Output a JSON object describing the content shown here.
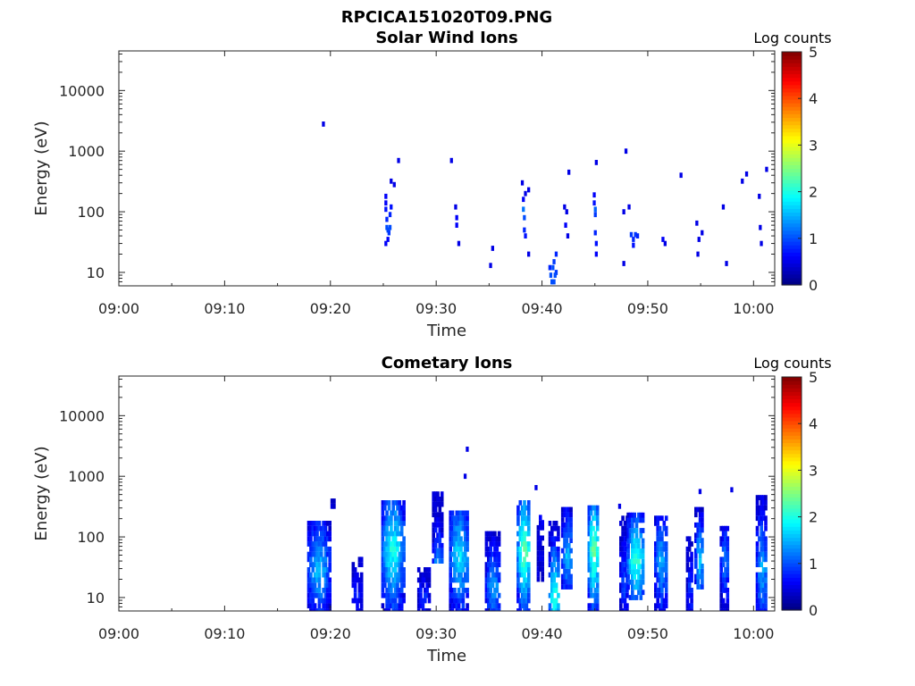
{
  "figure_title": "RPCICA151020T09.PNG",
  "chart_data": [
    {
      "type": "heatmap",
      "title": "Solar Wind Ions",
      "xlabel": "Time",
      "ylabel": "Energy (eV)",
      "x_ticks": [
        "09:00",
        "09:10",
        "09:20",
        "09:30",
        "09:40",
        "09:50",
        "10:00"
      ],
      "x_range_minutes": [
        0,
        62
      ],
      "y_scale": "log",
      "y_ticks": [
        10,
        100,
        1000,
        10000
      ],
      "y_range": [
        6,
        45000
      ],
      "colorbar": {
        "label": "Log counts",
        "ticks": [
          0,
          1,
          2,
          3,
          4,
          5
        ],
        "range": [
          0,
          5
        ],
        "colormap": "jet"
      },
      "cells": [
        [
          19.2,
          2800,
          0.5
        ],
        [
          25.1,
          180,
          0.6
        ],
        [
          25.1,
          140,
          0.6
        ],
        [
          25.1,
          110,
          0.7
        ],
        [
          25.2,
          75,
          0.8
        ],
        [
          25.2,
          55,
          1.0
        ],
        [
          25.3,
          50,
          1.0
        ],
        [
          25.4,
          45,
          0.9
        ],
        [
          25.5,
          55,
          1.0
        ],
        [
          25.5,
          90,
          0.8
        ],
        [
          25.6,
          120,
          0.7
        ],
        [
          25.1,
          30,
          0.6
        ],
        [
          25.3,
          35,
          0.6
        ],
        [
          25.6,
          320,
          0.5
        ],
        [
          25.9,
          280,
          0.5
        ],
        [
          26.3,
          700,
          0.5
        ],
        [
          31.3,
          700,
          0.5
        ],
        [
          31.7,
          120,
          0.5
        ],
        [
          31.8,
          80,
          0.6
        ],
        [
          31.8,
          60,
          0.6
        ],
        [
          32.0,
          30,
          0.5
        ],
        [
          35.0,
          13,
          0.5
        ],
        [
          35.2,
          25,
          0.5
        ],
        [
          38.0,
          300,
          0.5
        ],
        [
          38.1,
          160,
          0.6
        ],
        [
          38.1,
          110,
          1.2
        ],
        [
          38.2,
          80,
          1.0
        ],
        [
          38.2,
          50,
          0.8
        ],
        [
          38.3,
          40,
          0.7
        ],
        [
          38.3,
          200,
          0.5
        ],
        [
          38.6,
          230,
          0.5
        ],
        [
          38.6,
          20,
          0.5
        ],
        [
          40.6,
          12,
          0.8
        ],
        [
          40.7,
          9,
          1.0
        ],
        [
          40.8,
          7,
          1.0
        ],
        [
          40.9,
          12,
          1.0
        ],
        [
          41.0,
          15,
          0.9
        ],
        [
          41.0,
          7,
          1.0
        ],
        [
          41.2,
          20,
          0.8
        ],
        [
          41.2,
          10,
          0.9
        ],
        [
          41.1,
          9,
          1.0
        ],
        [
          42.0,
          120,
          0.5
        ],
        [
          42.1,
          60,
          0.6
        ],
        [
          42.2,
          100,
          0.5
        ],
        [
          42.3,
          40,
          0.5
        ],
        [
          42.4,
          450,
          0.5
        ],
        [
          44.8,
          190,
          0.6
        ],
        [
          44.8,
          140,
          0.7
        ],
        [
          44.9,
          110,
          1.1
        ],
        [
          44.9,
          90,
          0.9
        ],
        [
          44.9,
          45,
          0.8
        ],
        [
          45.0,
          30,
          0.7
        ],
        [
          45.0,
          20,
          0.6
        ],
        [
          45.0,
          650,
          0.5
        ],
        [
          47.6,
          100,
          0.5
        ],
        [
          47.6,
          14,
          0.5
        ],
        [
          47.8,
          1000,
          0.5
        ],
        [
          48.1,
          120,
          0.5
        ],
        [
          48.3,
          42,
          0.9
        ],
        [
          48.5,
          35,
          0.8
        ],
        [
          48.7,
          42,
          0.9
        ],
        [
          48.9,
          40,
          0.8
        ],
        [
          48.5,
          28,
          0.7
        ],
        [
          51.3,
          35,
          0.6
        ],
        [
          51.5,
          30,
          0.5
        ],
        [
          53.0,
          400,
          0.5
        ],
        [
          54.5,
          65,
          0.5
        ],
        [
          54.6,
          20,
          0.5
        ],
        [
          54.7,
          35,
          0.5
        ],
        [
          55.0,
          45,
          0.5
        ],
        [
          57.0,
          120,
          0.5
        ],
        [
          57.3,
          14,
          0.5
        ],
        [
          58.8,
          320,
          0.5
        ],
        [
          59.2,
          420,
          0.5
        ],
        [
          60.4,
          180,
          0.5
        ],
        [
          60.5,
          55,
          0.5
        ],
        [
          60.6,
          30,
          0.5
        ],
        [
          61.1,
          500,
          0.5
        ]
      ]
    },
    {
      "type": "heatmap",
      "title": "Cometary Ions",
      "xlabel": "Time",
      "ylabel": "Energy (eV)",
      "x_ticks": [
        "09:00",
        "09:10",
        "09:20",
        "09:30",
        "09:40",
        "09:50",
        "10:00"
      ],
      "x_range_minutes": [
        0,
        62
      ],
      "y_scale": "log",
      "y_ticks": [
        10,
        100,
        1000,
        10000
      ],
      "y_range": [
        6,
        45000
      ],
      "colorbar": {
        "label": "Log counts",
        "ticks": [
          0,
          1,
          2,
          3,
          4,
          5
        ],
        "range": [
          0,
          5
        ],
        "colormap": "jet"
      },
      "bursts": [
        {
          "t0": 17.8,
          "t1": 19.8,
          "emin": 6,
          "emax": 200,
          "peak": 1.6,
          "peak_e": 30
        },
        {
          "t0": 20.0,
          "t1": 20.2,
          "emin": 320,
          "emax": 400,
          "peak": 0.5,
          "peak_e": 350
        },
        {
          "t0": 22.0,
          "t1": 22.8,
          "emin": 6,
          "emax": 45,
          "peak": 0.8,
          "peak_e": 12
        },
        {
          "t0": 24.8,
          "t1": 26.8,
          "emin": 6,
          "emax": 430,
          "peak": 2.0,
          "peak_e": 60
        },
        {
          "t0": 28.2,
          "t1": 29.2,
          "emin": 6,
          "emax": 30,
          "peak": 0.9,
          "peak_e": 10
        },
        {
          "t0": 29.6,
          "t1": 30.5,
          "emin": 40,
          "emax": 550,
          "peak": 1.4,
          "peak_e": 40
        },
        {
          "t0": 31.2,
          "t1": 33.0,
          "emin": 6,
          "emax": 300,
          "peak": 1.8,
          "peak_e": 50
        },
        {
          "t0": 34.6,
          "t1": 36.0,
          "emin": 6,
          "emax": 130,
          "peak": 1.4,
          "peak_e": 15
        },
        {
          "t0": 37.6,
          "t1": 38.8,
          "emin": 6,
          "emax": 430,
          "peak": 2.4,
          "peak_e": 60
        },
        {
          "t0": 39.5,
          "t1": 40.0,
          "emin": 20,
          "emax": 250,
          "peak": 0.7,
          "peak_e": 100
        },
        {
          "t0": 40.6,
          "t1": 41.6,
          "emin": 6,
          "emax": 200,
          "peak": 2.2,
          "peak_e": 10
        },
        {
          "t0": 41.8,
          "t1": 42.8,
          "emin": 15,
          "emax": 300,
          "peak": 1.6,
          "peak_e": 50
        },
        {
          "t0": 44.3,
          "t1": 45.3,
          "emin": 6,
          "emax": 330,
          "peak": 2.5,
          "peak_e": 60
        },
        {
          "t0": 47.3,
          "t1": 48.0,
          "emin": 6,
          "emax": 210,
          "peak": 1.0,
          "peak_e": 20
        },
        {
          "t0": 48.0,
          "t1": 49.6,
          "emin": 10,
          "emax": 270,
          "peak": 2.2,
          "peak_e": 40
        },
        {
          "t0": 50.6,
          "t1": 51.8,
          "emin": 6,
          "emax": 240,
          "peak": 1.5,
          "peak_e": 40
        },
        {
          "t0": 53.6,
          "t1": 54.2,
          "emin": 6,
          "emax": 100,
          "peak": 0.9,
          "peak_e": 15
        },
        {
          "t0": 54.4,
          "t1": 55.2,
          "emin": 15,
          "emax": 300,
          "peak": 1.7,
          "peak_e": 40
        },
        {
          "t0": 56.8,
          "t1": 57.6,
          "emin": 6,
          "emax": 150,
          "peak": 1.2,
          "peak_e": 40
        },
        {
          "t0": 60.2,
          "t1": 61.2,
          "emin": 6,
          "emax": 450,
          "peak": 1.5,
          "peak_e": 30
        }
      ],
      "isolated_cells": [
        [
          32.8,
          2800,
          0.5
        ],
        [
          32.6,
          1000,
          0.5
        ],
        [
          39.3,
          650,
          0.5
        ],
        [
          57.8,
          600,
          0.5
        ],
        [
          54.8,
          560,
          0.5
        ],
        [
          47.2,
          320,
          0.5
        ]
      ]
    }
  ]
}
